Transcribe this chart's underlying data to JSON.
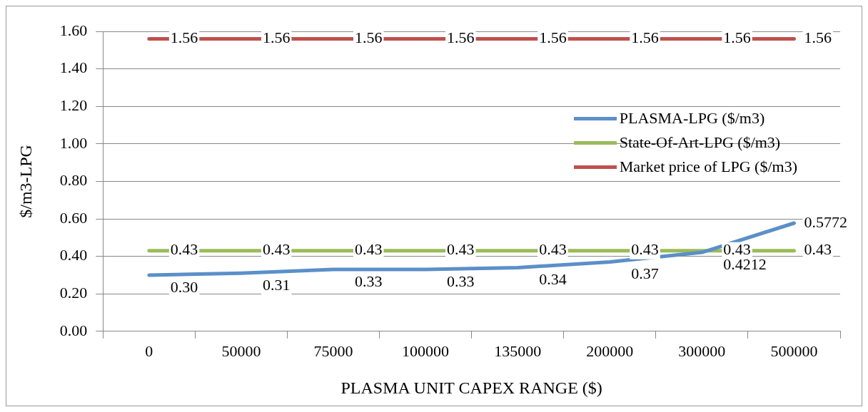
{
  "chart_data": {
    "type": "line",
    "xlabel": "PLASMA UNIT CAPEX RANGE ($)",
    "ylabel": "$/m3-LPG",
    "categories": [
      "0",
      "50000",
      "75000",
      "100000",
      "135000",
      "200000",
      "300000",
      "500000"
    ],
    "series": [
      {
        "name": "PLASMA-LPG ($/m3)",
        "color": "#5b8fc9",
        "values": [
          0.3,
          0.31,
          0.33,
          0.33,
          0.34,
          0.37,
          0.4212,
          0.5772
        ],
        "value_labels": [
          "0.30",
          "0.31",
          "0.33",
          "0.33",
          "0.34",
          "0.37",
          "0.4212",
          "0.5772"
        ]
      },
      {
        "name": "State-Of-Art-LPG ($/m3)",
        "color": "#9bbb59",
        "values": [
          0.43,
          0.43,
          0.43,
          0.43,
          0.43,
          0.43,
          0.43,
          0.43
        ],
        "value_labels": [
          "0.43",
          "0.43",
          "0.43",
          "0.43",
          "0.43",
          "0.43",
          "0.43",
          "0.43"
        ]
      },
      {
        "name": "Market price of LPG ($/m3)",
        "color": "#c0504d",
        "values": [
          1.56,
          1.56,
          1.56,
          1.56,
          1.56,
          1.56,
          1.56,
          1.56
        ],
        "value_labels": [
          "1.56",
          "1.56",
          "1.56",
          "1.56",
          "1.56",
          "1.56",
          "1.56",
          "1.56"
        ]
      }
    ],
    "ylim": [
      0,
      1.6
    ],
    "yticks": [
      {
        "value": 0,
        "label": "0.00"
      },
      {
        "value": 0.2,
        "label": "0.20"
      },
      {
        "value": 0.4,
        "label": "0.40"
      },
      {
        "value": 0.6,
        "label": "0.60"
      },
      {
        "value": 0.8,
        "label": "0.80"
      },
      {
        "value": 1.0,
        "label": "1.00"
      },
      {
        "value": 1.2,
        "label": "1.20"
      },
      {
        "value": 1.4,
        "label": "1.40"
      },
      {
        "value": 1.6,
        "label": "1.60"
      }
    ],
    "grid": "y",
    "legend": "right",
    "marker": "none",
    "line_style": "solid"
  }
}
